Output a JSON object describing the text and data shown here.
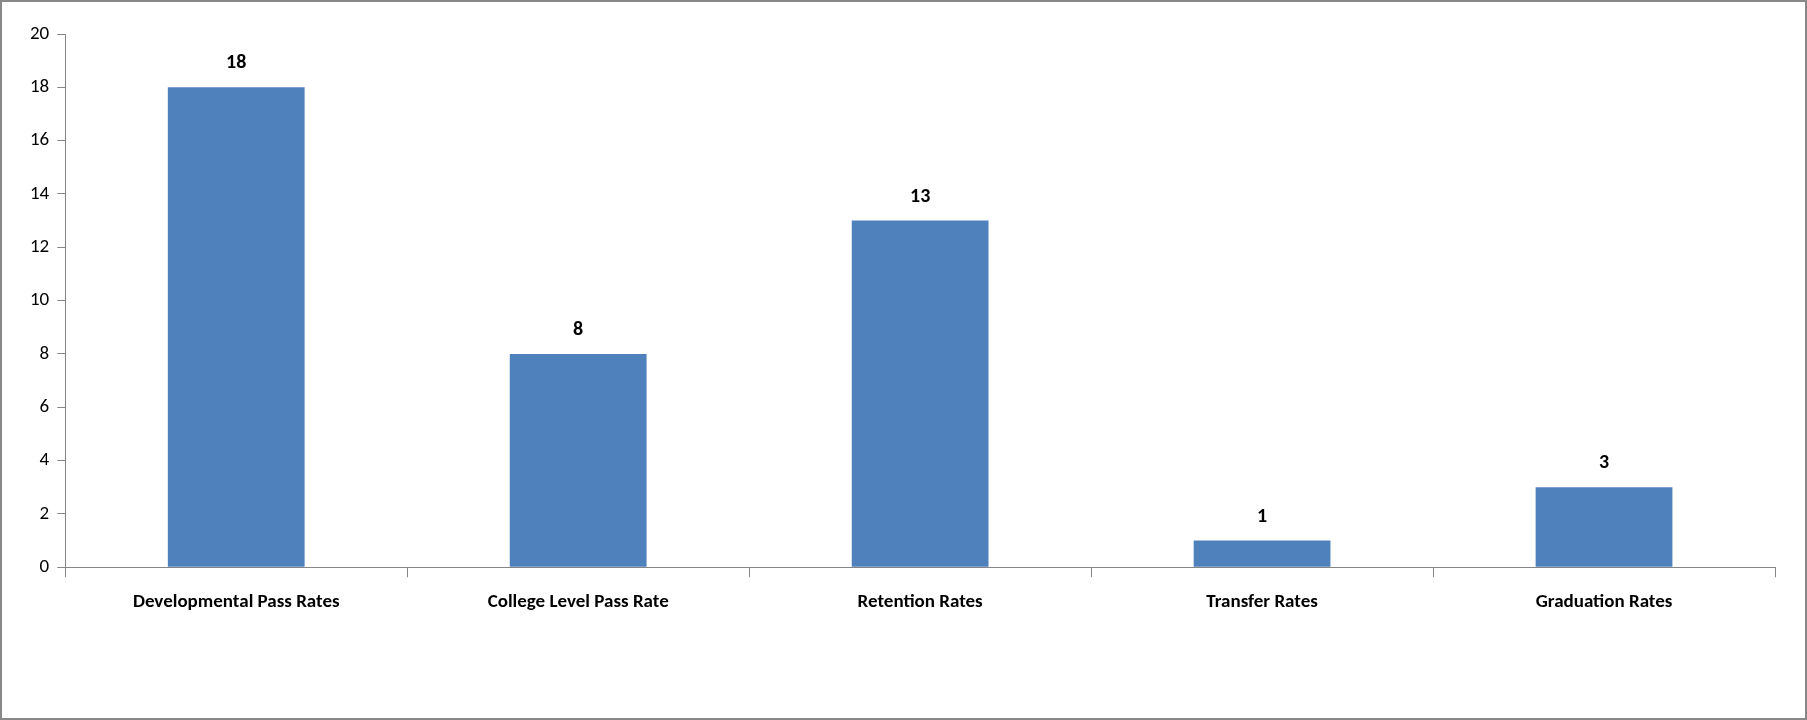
{
  "chart_data": {
    "type": "bar",
    "categories": [
      "Developmental Pass Rates",
      "College Level Pass Rate",
      "Retention Rates",
      "Transfer Rates",
      "Graduation Rates"
    ],
    "values": [
      18,
      8,
      13,
      1,
      3
    ],
    "color": "#4f81bd",
    "ylim": [
      0,
      20
    ],
    "yticks": [
      0,
      2,
      4,
      6,
      8,
      10,
      12,
      14,
      16,
      18,
      20
    ],
    "data_labels": true,
    "grid": false,
    "legend": false
  }
}
